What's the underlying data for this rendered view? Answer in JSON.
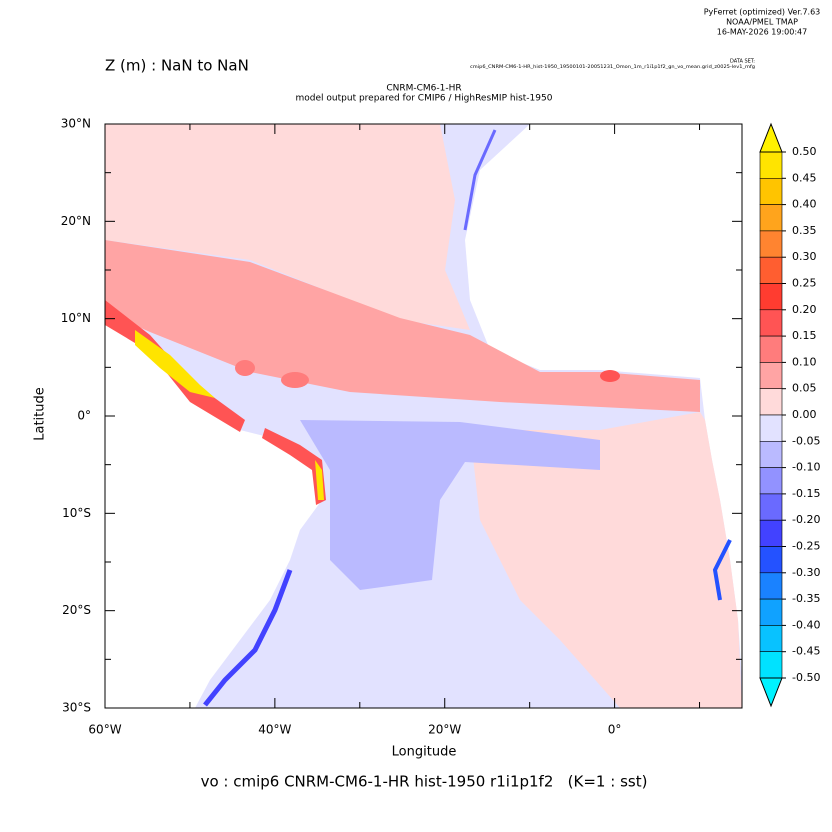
{
  "header": {
    "software": "PyFerret (optimized) Ver.7.63",
    "lab": "NOAA/PMEL TMAP",
    "timestamp": "16-MAY-2026 19:00:47",
    "range_note": "Z (m) : NaN to NaN",
    "dataset_label": "DATA SET:",
    "dataset": "cmip6_CNRM-CM6-1-HR_hist-1950_19500101-20051231_Omon_1m_r1i1p1f2_gn_vo_mean.grid_z0025-lev1_mfg",
    "title": "CNRM-CM6-1-HR",
    "subtitle": "model output prepared for CMIP6 / HighResMIP hist-1950"
  },
  "axes": {
    "x_label": "Longitude",
    "y_label": "Latitude",
    "xlim": [
      -60,
      15
    ],
    "ylim": [
      -30,
      30
    ],
    "xticks": [
      {
        "value": -60,
        "label": "60°W"
      },
      {
        "value": -40,
        "label": "40°W"
      },
      {
        "value": -20,
        "label": "20°W"
      },
      {
        "value": 0,
        "label": "0°"
      }
    ],
    "x_minor_ticks": [
      -50,
      -30,
      -10,
      10
    ],
    "yticks": [
      {
        "value": 30,
        "label": "30°N"
      },
      {
        "value": 20,
        "label": "20°N"
      },
      {
        "value": 10,
        "label": "10°N"
      },
      {
        "value": 0,
        "label": "0°"
      },
      {
        "value": -10,
        "label": "10°S"
      },
      {
        "value": -20,
        "label": "20°S"
      },
      {
        "value": -30,
        "label": "30°S"
      }
    ],
    "y_minor_ticks": [
      25,
      15,
      5,
      -5,
      -15,
      -25
    ]
  },
  "colorbar": {
    "levels": [
      {
        "value": 0.5,
        "label": "0.50"
      },
      {
        "value": 0.45,
        "label": "0.45"
      },
      {
        "value": 0.4,
        "label": "0.40"
      },
      {
        "value": 0.35,
        "label": "0.35"
      },
      {
        "value": 0.3,
        "label": "0.30"
      },
      {
        "value": 0.25,
        "label": "0.25"
      },
      {
        "value": 0.2,
        "label": "0.20"
      },
      {
        "value": 0.15,
        "label": "0.15"
      },
      {
        "value": 0.1,
        "label": "0.10"
      },
      {
        "value": 0.05,
        "label": "0.05"
      },
      {
        "value": 0,
        "label": "0.00"
      },
      {
        "value": -0.05,
        "label": "-0.05"
      },
      {
        "value": -0.1,
        "label": "-0.10"
      },
      {
        "value": -0.15,
        "label": "-0.15"
      },
      {
        "value": -0.2,
        "label": "-0.20"
      },
      {
        "value": -0.25,
        "label": "-0.25"
      },
      {
        "value": -0.3,
        "label": "-0.30"
      },
      {
        "value": -0.35,
        "label": "-0.35"
      },
      {
        "value": -0.4,
        "label": "-0.40"
      },
      {
        "value": -0.45,
        "label": "-0.45"
      },
      {
        "value": -0.5,
        "label": "-0.50"
      }
    ],
    "colors": [
      "#ffe400",
      "#ffc400",
      "#ffa41c",
      "#ff8430",
      "#ff5e30",
      "#ff3c30",
      "#ff5454",
      "#ff7c7c",
      "#ffa4a4",
      "#ffdada",
      "#e2e2ff",
      "#babaff",
      "#9292ff",
      "#6a6aff",
      "#4242ff",
      "#2452ff",
      "#1a82ff",
      "#10a2ff",
      "#08c2ff",
      "#00e2ff"
    ],
    "over_color": "#fff200",
    "under_color": "#00f2ff"
  },
  "footer": {
    "caption": "vo : cmip6 CNRM-CM6-1-HR hist-1950 r1i1p1f2   (K=1 : sst)"
  }
}
